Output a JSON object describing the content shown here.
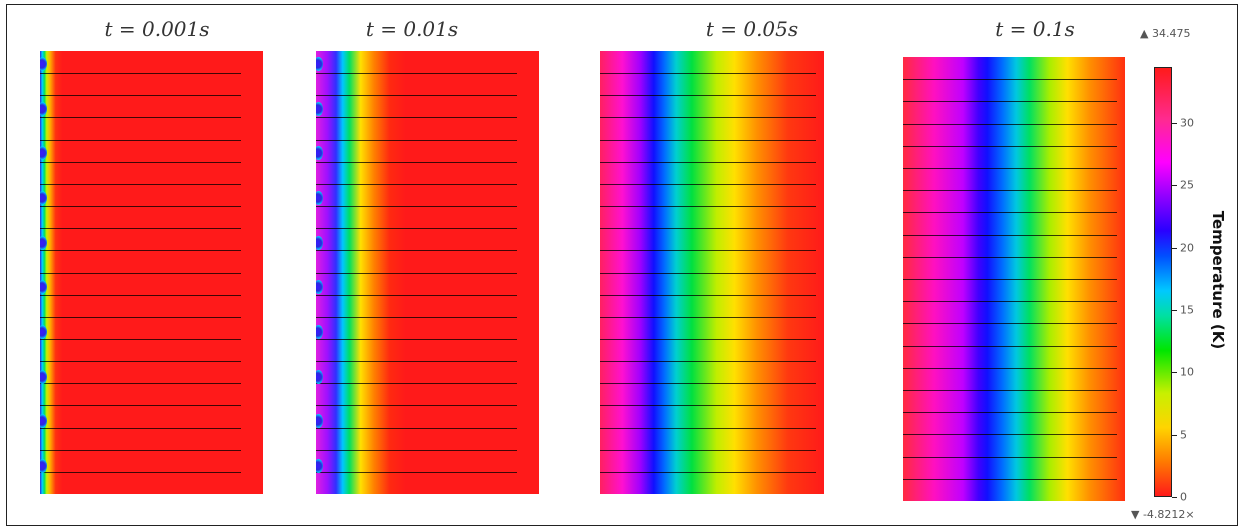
{
  "panels": [
    {
      "title": "t = 0.001s",
      "stops": [
        [
          0,
          "#2a2ae0"
        ],
        [
          1,
          "#00d0ff"
        ],
        [
          2,
          "#00e060"
        ],
        [
          3,
          "#c8f000"
        ],
        [
          4.5,
          "#ffb000"
        ],
        [
          7,
          "#ff3010"
        ],
        [
          10,
          "#ff1a1a"
        ],
        [
          100,
          "#ff1a1a"
        ]
      ],
      "dots": true
    },
    {
      "title": "t = 0.01s",
      "stops": [
        [
          0,
          "#e020e0"
        ],
        [
          5,
          "#a010ff"
        ],
        [
          9,
          "#3030ff"
        ],
        [
          12,
          "#00c8ff"
        ],
        [
          15,
          "#00e060"
        ],
        [
          20,
          "#ffe000"
        ],
        [
          26,
          "#ff8000"
        ],
        [
          33,
          "#ff2a10"
        ],
        [
          40,
          "#ff1a1a"
        ],
        [
          100,
          "#ff1a1a"
        ]
      ],
      "dots": true
    },
    {
      "title": "t = 0.05s",
      "stops": [
        [
          0,
          "#ff2060"
        ],
        [
          10,
          "#ff10d0"
        ],
        [
          18,
          "#a000ff"
        ],
        [
          24,
          "#1010ff"
        ],
        [
          29,
          "#0070ff"
        ],
        [
          34,
          "#00d0d0"
        ],
        [
          41,
          "#00e040"
        ],
        [
          52,
          "#c0ee00"
        ],
        [
          60,
          "#ffe000"
        ],
        [
          70,
          "#ff9000"
        ],
        [
          84,
          "#ff3810"
        ],
        [
          100,
          "#ff1a1a"
        ]
      ],
      "dots": false
    },
    {
      "title": "t = 0.1s",
      "stops": [
        [
          0,
          "#ff2a40"
        ],
        [
          14,
          "#ff10c0"
        ],
        [
          27,
          "#c000ff"
        ],
        [
          34,
          "#4000ff"
        ],
        [
          38,
          "#1010ff"
        ],
        [
          45,
          "#0070ff"
        ],
        [
          51,
          "#00c8e0"
        ],
        [
          57,
          "#00e060"
        ],
        [
          66,
          "#a8ee00"
        ],
        [
          74,
          "#ffe000"
        ],
        [
          84,
          "#ff9000"
        ],
        [
          100,
          "#ff3010"
        ]
      ],
      "dots": false
    }
  ],
  "colorbar": {
    "title": "Temperature (K)",
    "max_label": "▲ 34.475",
    "min_label": "▼ -4.8212×",
    "ticks": [
      "0",
      "5",
      "10",
      "15",
      "20",
      "25",
      "30"
    ],
    "range": [
      0,
      34.475
    ]
  }
}
